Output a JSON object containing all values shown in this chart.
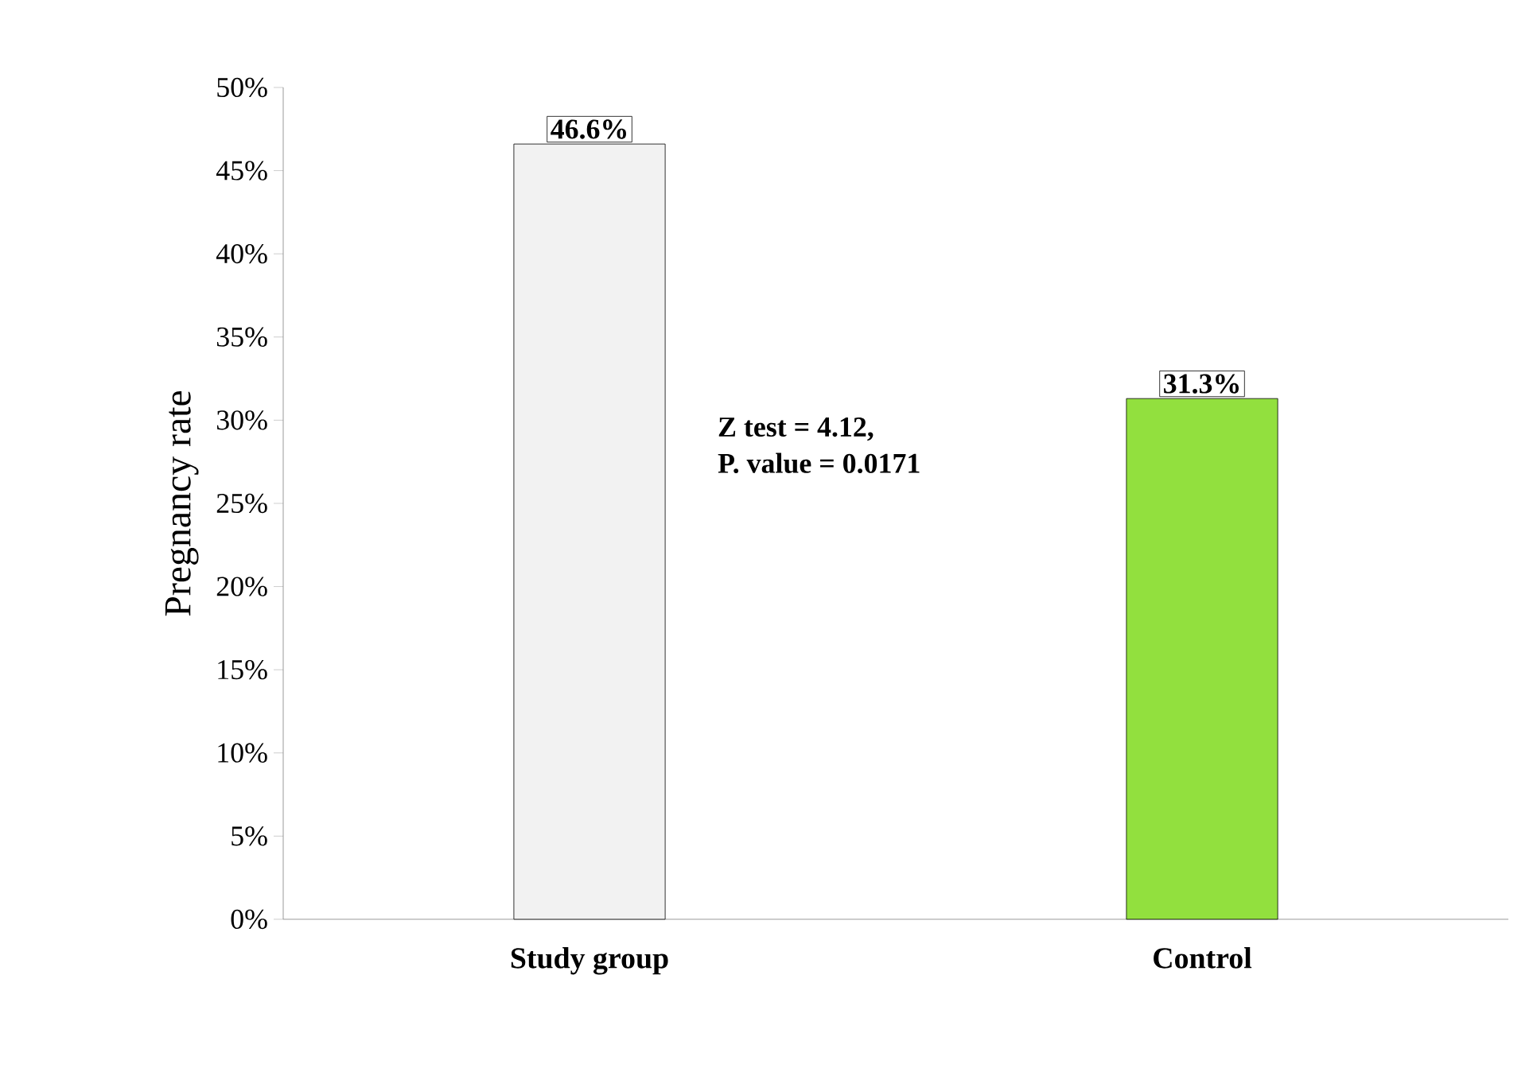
{
  "chart_data": {
    "type": "bar",
    "ylabel": "Pregnancy rate",
    "categories": [
      "Study group",
      "Control"
    ],
    "values": [
      46.6,
      31.3
    ],
    "colors": [
      "#f2f2f2",
      "#92e03e"
    ],
    "value_labels": [
      "46.6%",
      "31.3%"
    ],
    "ylim": [
      0,
      50
    ],
    "yticks": [
      {
        "value": 0,
        "label": "0%"
      },
      {
        "value": 5,
        "label": "5%"
      },
      {
        "value": 10,
        "label": "10%"
      },
      {
        "value": 15,
        "label": "15%"
      },
      {
        "value": 20,
        "label": "20%"
      },
      {
        "value": 25,
        "label": "25%"
      },
      {
        "value": 30,
        "label": "30%"
      },
      {
        "value": 35,
        "label": "35%"
      },
      {
        "value": 40,
        "label": "40%"
      },
      {
        "value": 45,
        "label": "45%"
      },
      {
        "value": 50,
        "label": "50%"
      }
    ],
    "annotations": [
      "Z test = 4.12,",
      "P. value = 0.0171"
    ]
  }
}
